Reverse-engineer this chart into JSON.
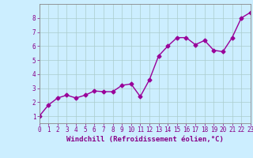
{
  "x": [
    0,
    1,
    2,
    3,
    4,
    5,
    6,
    7,
    8,
    9,
    10,
    11,
    12,
    13,
    14,
    15,
    16,
    17,
    18,
    19,
    20,
    21,
    22,
    23
  ],
  "y": [
    1.0,
    1.8,
    2.3,
    2.5,
    2.3,
    2.5,
    2.8,
    2.75,
    2.75,
    3.2,
    3.3,
    2.4,
    3.6,
    5.3,
    6.0,
    6.6,
    6.6,
    6.1,
    6.4,
    5.7,
    5.6,
    6.6,
    8.0,
    8.4
  ],
  "line_color": "#990099",
  "marker": "D",
  "marker_size": 2.5,
  "line_width": 1.0,
  "xlabel": "Windchill (Refroidissement éolien,°C)",
  "xlim": [
    0,
    23
  ],
  "ylim": [
    0.5,
    9.0
  ],
  "yticks": [
    1,
    2,
    3,
    4,
    5,
    6,
    7,
    8
  ],
  "xticks": [
    0,
    1,
    2,
    3,
    4,
    5,
    6,
    7,
    8,
    9,
    10,
    11,
    12,
    13,
    14,
    15,
    16,
    17,
    18,
    19,
    20,
    21,
    22,
    23
  ],
  "background_color": "#cceeff",
  "plot_bg_color": "#cceeff",
  "grid_color": "#aacccc",
  "tick_color": "#880088",
  "label_color": "#880088",
  "axis_color": "#888888",
  "xlabel_fontsize": 6.5,
  "tick_fontsize": 5.5
}
